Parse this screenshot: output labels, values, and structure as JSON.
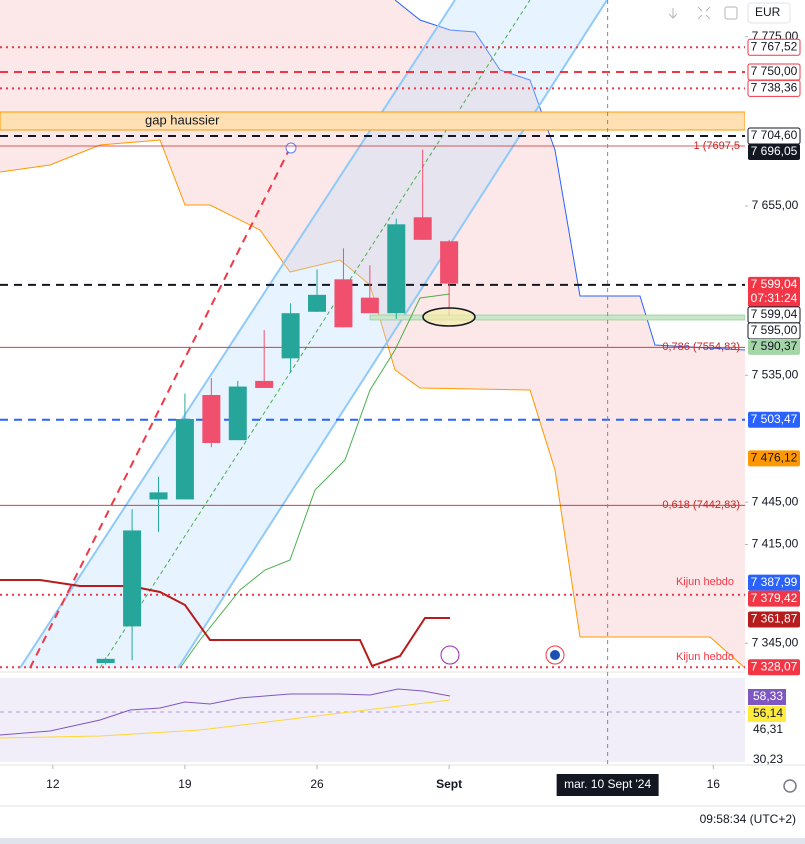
{
  "toolbar": {
    "currency": "EUR"
  },
  "chart_data": {
    "type": "candlestick",
    "x": [
      2,
      3,
      4,
      5,
      6,
      7,
      8,
      9,
      10,
      11,
      12,
      13,
      14,
      15
    ],
    "open": [
      7331,
      7357,
      7447,
      7447,
      7521,
      7489,
      7531,
      7547,
      7580,
      7603,
      7590,
      7579,
      7647,
      7630
    ],
    "high": [
      7335,
      7440,
      7463,
      7522,
      7533,
      7531,
      7567,
      7586,
      7610,
      7625,
      7613,
      7646,
      7695,
      7631
    ],
    "low": [
      7330,
      7333,
      7424,
      7447,
      7484,
      7489,
      7526,
      7537,
      7580,
      7569,
      7579,
      7575,
      7631,
      7577
    ],
    "close": [
      7334,
      7425,
      7452,
      7504,
      7487,
      7527,
      7526,
      7579,
      7592,
      7569,
      7579,
      7642,
      7631,
      7600
    ],
    "up_color": "#26a69a",
    "down_color": "#f0506e",
    "xlim": [
      -2,
      26.2
    ],
    "xticks": [
      {
        "value": 0,
        "label": "12"
      },
      {
        "value": 5,
        "label": "19"
      },
      {
        "value": 10,
        "label": "26"
      },
      {
        "value": 15,
        "label": "Sept"
      },
      {
        "value": 25,
        "label": "16"
      }
    ],
    "ylim": [
      7327.5,
      7801
    ],
    "yticks": [
      {
        "value": 7775,
        "label": "7 775,00"
      },
      {
        "value": 7655,
        "label": "7 655,00"
      },
      {
        "value": 7535,
        "label": "7 535,00"
      },
      {
        "value": 7445,
        "label": "7 445,00"
      },
      {
        "value": 7415,
        "label": "7 415,00"
      },
      {
        "value": 7345,
        "label": "7 345,00"
      }
    ],
    "grid": false,
    "levels": [
      {
        "value": 7767.52,
        "label": "7 767,52",
        "color": "#f23645",
        "style": "dotted",
        "filled": false
      },
      {
        "value": 7750,
        "label": "7 750,00",
        "color": "#f23645",
        "style": "dashed",
        "filled": false
      },
      {
        "value": 7738.36,
        "label": "7 738,36",
        "color": "#f23645",
        "style": "dotted",
        "filled": false
      },
      {
        "value": 7704.6,
        "label": "7 704,60",
        "color": "#131722",
        "style": "dashed",
        "filled": false
      },
      {
        "value": 7696.05,
        "label": "7 696,05",
        "color": "#131722",
        "style": "none",
        "filled": true
      },
      {
        "value": 7599.04,
        "label": "7 599,04",
        "color": "#f23645",
        "style": "none",
        "filled": true,
        "countdown": "07:31:24"
      },
      {
        "value": 7599.04,
        "label": "7 599,04",
        "color": "#131722",
        "style": "dashed",
        "filled": false
      },
      {
        "value": 7595,
        "label": "7 595,00",
        "color": "#131722",
        "style": "none",
        "filled": false
      },
      {
        "value": 7590.37,
        "label": "7 590,37",
        "color": "#a5d6a7",
        "style": "none",
        "filled": true
      },
      {
        "value": 7503.47,
        "label": "7 503,47",
        "color": "#2962ff",
        "style": "dashed",
        "filled": true
      },
      {
        "value": 7476.12,
        "label": "7 476,12",
        "color": "#ff9800",
        "style": "none",
        "filled": true
      },
      {
        "value": 7387.99,
        "label": "7 387,99",
        "color": "#2962ff",
        "style": "none",
        "filled": true
      },
      {
        "value": 7379.42,
        "label": "7 379,42",
        "color": "#f23645",
        "style": "dotted",
        "filled": true
      },
      {
        "value": 7361.87,
        "label": "7 361,87",
        "color": "#b71c1c",
        "style": "none",
        "filled": true
      },
      {
        "value": 7328.07,
        "label": "7 328,07",
        "color": "#f23645",
        "style": "dotted",
        "filled": true
      }
    ],
    "fib": [
      {
        "value": 7697.5,
        "label": "1 (7697,5"
      },
      {
        "value": 7554.83,
        "label": "0,786 (7554,83)"
      },
      {
        "value": 7442.83,
        "label": "0,618 (7442,83)"
      }
    ],
    "annotations": [
      "gap haussier",
      "Kijun hebdo",
      "Kijun hebdo"
    ],
    "crosshair": {
      "x": 21,
      "label": "mar. 10 Sept '24"
    },
    "indicator_labels": [
      {
        "label": "58,33",
        "color": "#7e57c2"
      },
      {
        "label": "56,14",
        "color": "#ffeb3b"
      },
      {
        "label": "46,31"
      },
      {
        "label": "30,23"
      }
    ]
  },
  "footer": {
    "time": "09:58:34 (UTC+2)"
  }
}
